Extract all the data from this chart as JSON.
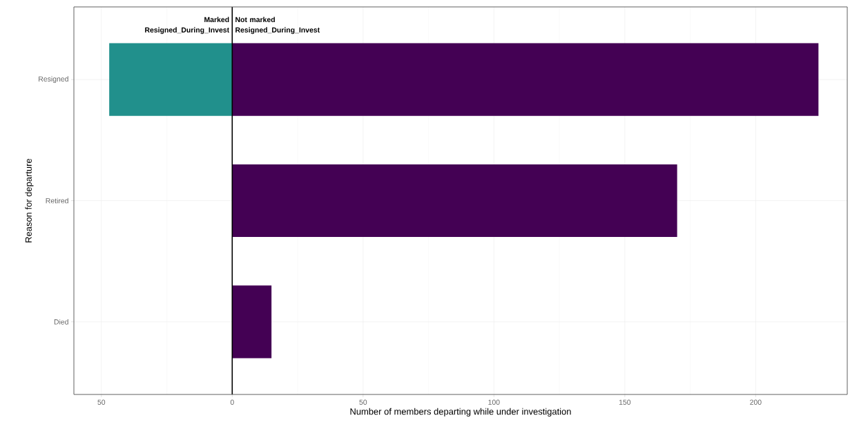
{
  "chart_data": {
    "type": "bar",
    "orientation": "horizontal",
    "xlabel": "Number of members departing while under investigation",
    "ylabel": "Reason for departure",
    "categories": [
      "Resigned",
      "Retired",
      "Died"
    ],
    "series": [
      {
        "color": "#21908c",
        "values": [
          -47,
          null,
          null
        ]
      },
      {
        "color": "#440154",
        "values": [
          224,
          170,
          15
        ]
      }
    ],
    "xlim": [
      -60.5,
      235
    ],
    "xticks": [
      {
        "value": -50,
        "label": "50"
      },
      0,
      50,
      100,
      150,
      200
    ],
    "ref_lines": [
      {
        "axis": "x",
        "value": 0
      }
    ],
    "annotations": [
      "Marked Resigned_During_Invest",
      "Not marked Resigned_During_Invest"
    ],
    "grid": true
  }
}
